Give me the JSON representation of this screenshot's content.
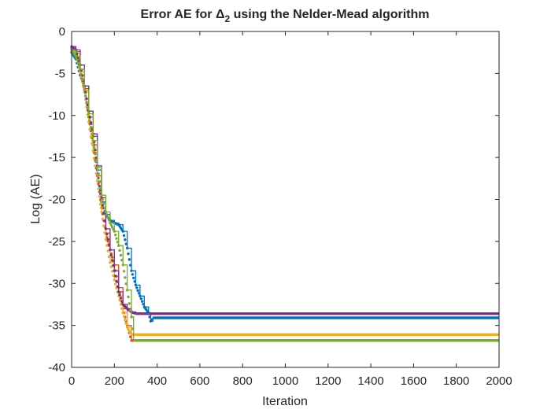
{
  "chart_data": {
    "type": "line",
    "title": {
      "prefix": "Error AE for ",
      "symbol": "Δ",
      "subscript": "2",
      "suffix": " using the Nelder-Mead algorithm"
    },
    "xlabel": "Iteration",
    "ylabel": "Log (AE)",
    "xlim": [
      0,
      2000
    ],
    "ylim": [
      -40,
      0
    ],
    "xticks": [
      0,
      200,
      400,
      600,
      800,
      1000,
      1200,
      1400,
      1600,
      1800,
      2000
    ],
    "yticks": [
      0,
      -5,
      -10,
      -15,
      -20,
      -25,
      -30,
      -35,
      -40
    ],
    "grid": false,
    "legend": "none",
    "marker": "dot",
    "series": [
      {
        "color": "#0072BD",
        "points": [
          [
            0,
            -2.5
          ],
          [
            20,
            -3.3
          ],
          [
            40,
            -5.2
          ],
          [
            60,
            -6.5
          ],
          [
            80,
            -9.5
          ],
          [
            100,
            -12.5
          ],
          [
            120,
            -16.5
          ],
          [
            140,
            -20.3
          ],
          [
            160,
            -21.8
          ],
          [
            180,
            -22.5
          ],
          [
            200,
            -22.8
          ],
          [
            220,
            -23.0
          ],
          [
            240,
            -23.8
          ],
          [
            260,
            -25.8
          ],
          [
            280,
            -28.5
          ],
          [
            300,
            -30.2
          ],
          [
            320,
            -31.5
          ],
          [
            340,
            -32.8
          ],
          [
            360,
            -33.5
          ],
          [
            370,
            -34.5
          ],
          [
            380,
            -34.1
          ],
          [
            2000,
            -34.1
          ]
        ]
      },
      {
        "color": "#D95319",
        "points": [
          [
            0,
            -2.0
          ],
          [
            20,
            -2.4
          ],
          [
            40,
            -4.5
          ],
          [
            60,
            -6.8
          ],
          [
            80,
            -10.2
          ],
          [
            100,
            -13.5
          ],
          [
            120,
            -17.2
          ],
          [
            140,
            -21.0
          ],
          [
            160,
            -24.0
          ],
          [
            180,
            -26.0
          ],
          [
            200,
            -27.8
          ],
          [
            220,
            -30.5
          ],
          [
            240,
            -33.0
          ],
          [
            260,
            -35.0
          ],
          [
            280,
            -36.8
          ],
          [
            300,
            -36.8
          ],
          [
            2000,
            -36.8
          ]
        ]
      },
      {
        "color": "#EDB120",
        "points": [
          [
            0,
            -2.0
          ],
          [
            20,
            -2.6
          ],
          [
            40,
            -4.8
          ],
          [
            60,
            -7.2
          ],
          [
            80,
            -10.8
          ],
          [
            100,
            -14.2
          ],
          [
            120,
            -17.8
          ],
          [
            140,
            -21.5
          ],
          [
            160,
            -24.8
          ],
          [
            180,
            -27.5
          ],
          [
            200,
            -29.6
          ],
          [
            220,
            -31.5
          ],
          [
            240,
            -33.5
          ],
          [
            260,
            -35.2
          ],
          [
            280,
            -36.1
          ],
          [
            2000,
            -36.1
          ]
        ]
      },
      {
        "color": "#7E2F8E",
        "points": [
          [
            0,
            -1.8
          ],
          [
            20,
            -2.2
          ],
          [
            40,
            -4.0
          ],
          [
            60,
            -6.5
          ],
          [
            80,
            -9.5
          ],
          [
            100,
            -12.2
          ],
          [
            120,
            -16.0
          ],
          [
            140,
            -19.8
          ],
          [
            160,
            -23.5
          ],
          [
            180,
            -26.0
          ],
          [
            200,
            -28.5
          ],
          [
            220,
            -31.0
          ],
          [
            240,
            -32.5
          ],
          [
            260,
            -33.0
          ],
          [
            280,
            -33.4
          ],
          [
            300,
            -33.6
          ],
          [
            2000,
            -33.6
          ]
        ]
      },
      {
        "color": "#77AC30",
        "points": [
          [
            0,
            -2.2
          ],
          [
            20,
            -3.0
          ],
          [
            40,
            -4.5
          ],
          [
            60,
            -7.0
          ],
          [
            80,
            -9.8
          ],
          [
            100,
            -13.0
          ],
          [
            120,
            -16.2
          ],
          [
            140,
            -19.5
          ],
          [
            160,
            -21.5
          ],
          [
            180,
            -22.8
          ],
          [
            200,
            -23.8
          ],
          [
            220,
            -25.5
          ],
          [
            240,
            -27.8
          ],
          [
            260,
            -30.8
          ],
          [
            280,
            -34.0
          ],
          [
            290,
            -36.8
          ],
          [
            2000,
            -36.8
          ]
        ]
      }
    ]
  }
}
